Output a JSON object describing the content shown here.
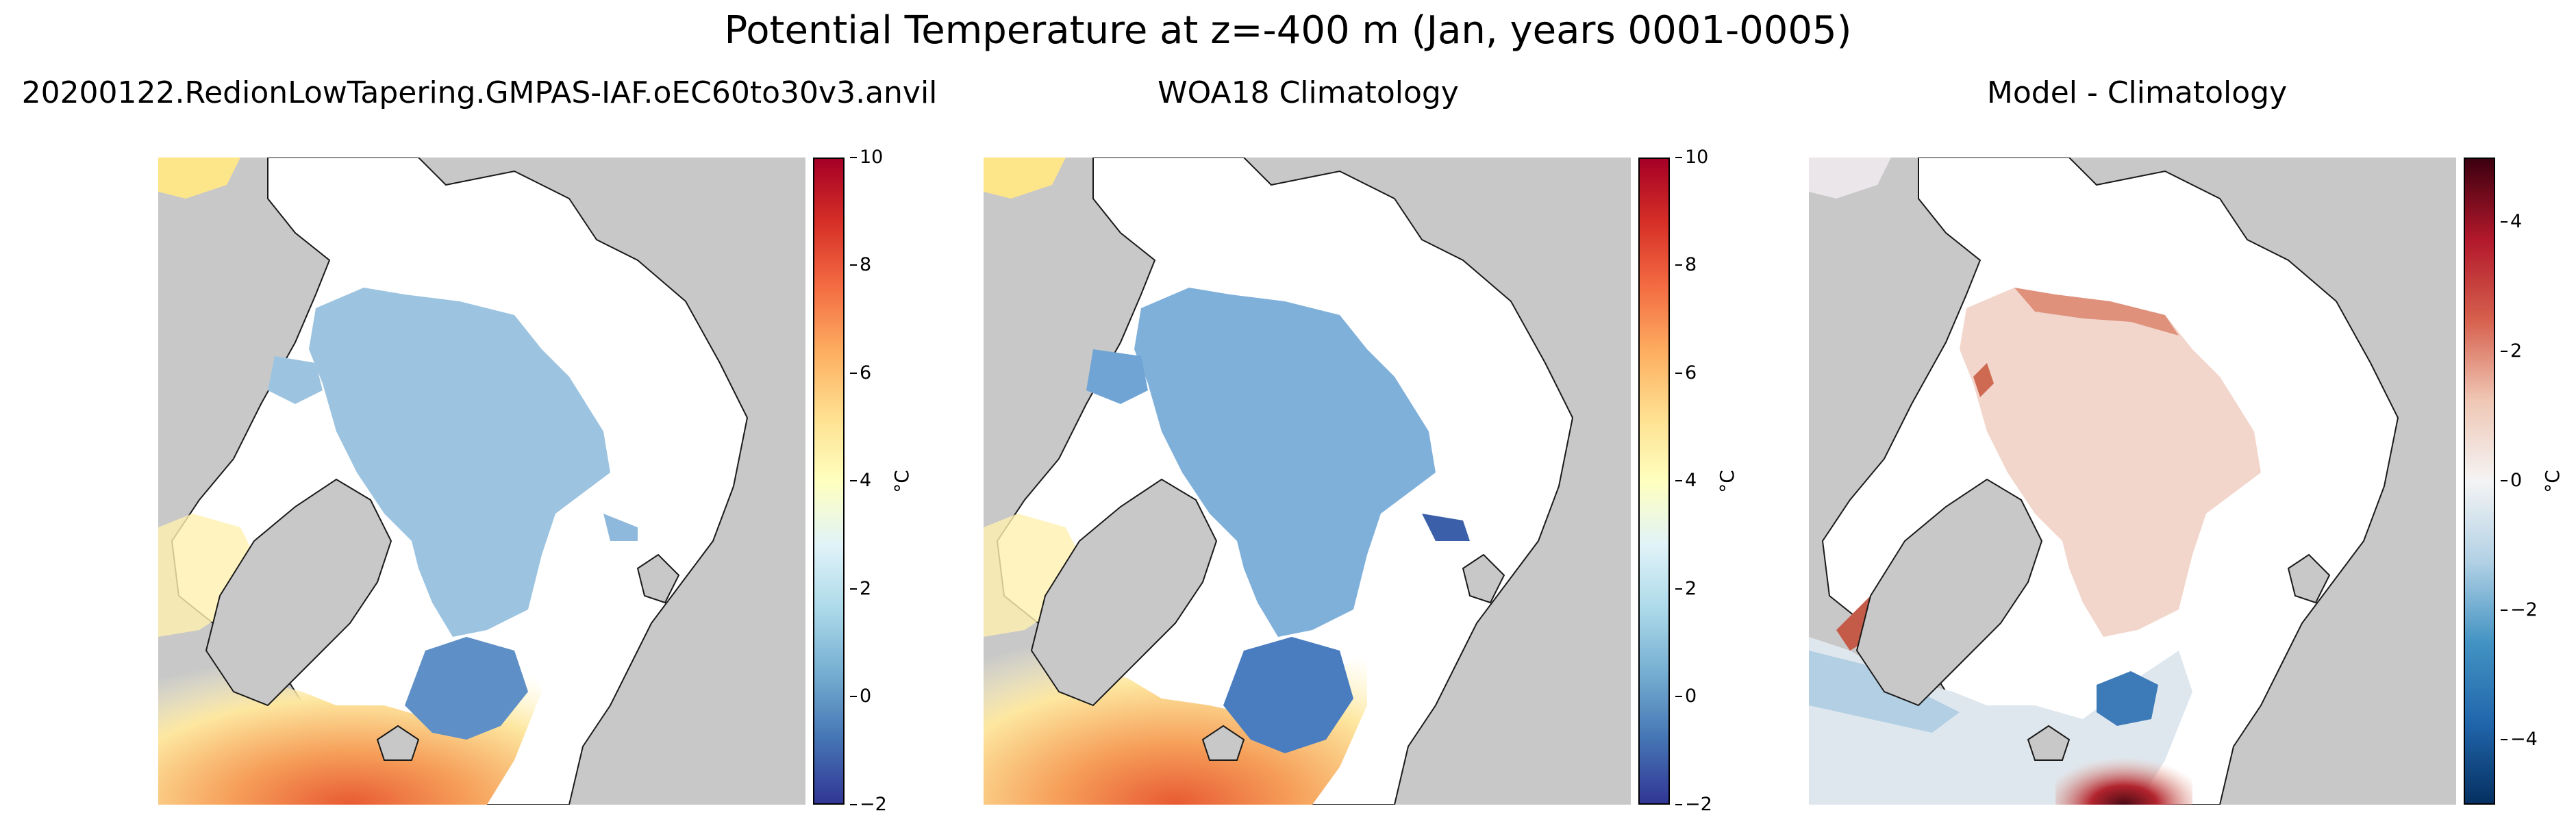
{
  "title": "Potential Temperature at z=-400 m (Jan, years 0001-0005)",
  "panels": [
    {
      "title": "20200122.RedionLowTapering.GMPAS-IAF.oEC60to30v3.anvil",
      "colormap": "RdYlBu_r",
      "colorbar": {
        "unit": "°C",
        "ticks": [
          "10",
          "8",
          "6",
          "4",
          "2",
          "0",
          "−2"
        ],
        "range": [
          -2,
          10
        ]
      }
    },
    {
      "title": "WOA18 Climatology",
      "colormap": "RdYlBu_r",
      "colorbar": {
        "unit": "°C",
        "ticks": [
          "10",
          "8",
          "6",
          "4",
          "2",
          "0",
          "−2"
        ],
        "range": [
          -2,
          10
        ]
      }
    },
    {
      "title": "Model - Climatology",
      "colormap": "RdBu_r",
      "colorbar": {
        "unit": "°C",
        "ticks": [
          "4",
          "2",
          "0",
          "−2",
          "−4"
        ],
        "range": [
          -5,
          5
        ]
      }
    }
  ],
  "colors": {
    "land": "#c8c8c8",
    "no_data": "#ffffff",
    "coastline": "#1a1a1a"
  }
}
